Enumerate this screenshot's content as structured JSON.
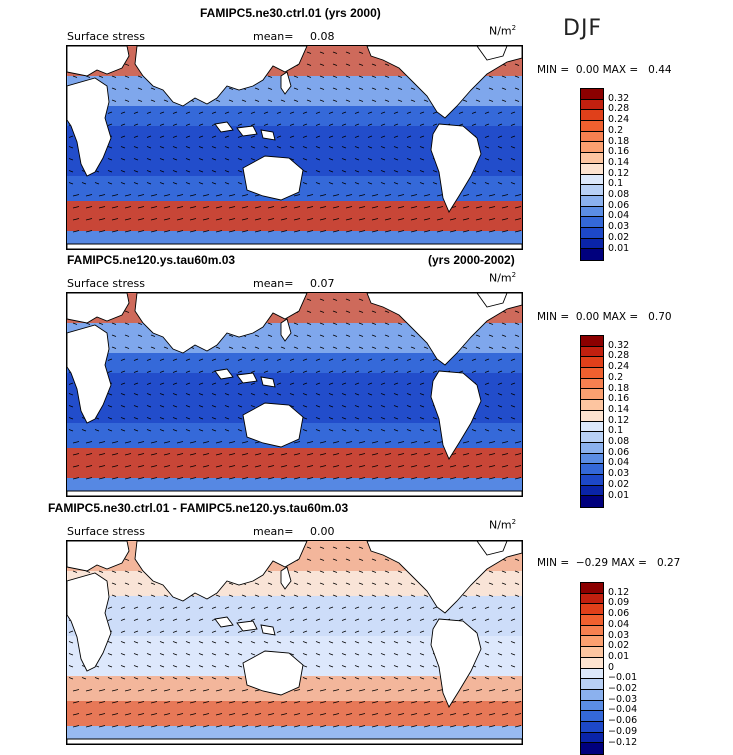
{
  "season": "DJF",
  "panels": [
    {
      "title": "FAMIPC5.ne30.ctrl.01 (yrs 2000)",
      "title_right": "",
      "field_label": "Surface stress",
      "mean_label": "mean=",
      "mean_value": "0.08",
      "units": "N/m",
      "units_sup": "2",
      "min_label": "MIN =",
      "min_value": "0.00",
      "max_label": "MAX =",
      "max_value": "0.44",
      "colorbar_levels": [
        "0.32",
        "0.28",
        "0.24",
        "0.2",
        "0.18",
        "0.16",
        "0.14",
        "0.12",
        "0.1",
        "0.08",
        "0.06",
        "0.04",
        "0.03",
        "0.02",
        "0.01"
      ],
      "colorbar_colors": [
        "#8b0000",
        "#c1200f",
        "#e0401a",
        "#f0602f",
        "#f68050",
        "#fba070",
        "#fdc5a0",
        "#fde3d0",
        "#dce8fb",
        "#b8d0f5",
        "#8bb1ee",
        "#5b8de4",
        "#3468d8",
        "#1d48c8",
        "#0a24a8",
        "#00007d"
      ]
    },
    {
      "title": "FAMIPC5.ne120.ys.tau60m.03",
      "title_right": "(yrs 2000-2002)",
      "field_label": "Surface stress",
      "mean_label": "mean=",
      "mean_value": "0.07",
      "units": "N/m",
      "units_sup": "2",
      "min_label": "MIN =",
      "min_value": "0.00",
      "max_label": "MAX =",
      "max_value": "0.70",
      "colorbar_levels": [
        "0.32",
        "0.28",
        "0.24",
        "0.2",
        "0.18",
        "0.16",
        "0.14",
        "0.12",
        "0.1",
        "0.08",
        "0.06",
        "0.04",
        "0.03",
        "0.02",
        "0.01"
      ],
      "colorbar_colors": [
        "#8b0000",
        "#c1200f",
        "#e0401a",
        "#f0602f",
        "#f68050",
        "#fba070",
        "#fdc5a0",
        "#fde3d0",
        "#dce8fb",
        "#b8d0f5",
        "#8bb1ee",
        "#5b8de4",
        "#3468d8",
        "#1d48c8",
        "#0a24a8",
        "#00007d"
      ]
    },
    {
      "title": "FAMIPC5.ne30.ctrl.01 - FAMIPC5.ne120.ys.tau60m.03",
      "title_right": "",
      "field_label": "Surface stress",
      "mean_label": "mean=",
      "mean_value": "0.00",
      "units": "N/m",
      "units_sup": "2",
      "min_label": "MIN =",
      "min_value": "−0.29",
      "max_label": "MAX =",
      "max_value": "0.27",
      "colorbar_levels": [
        "0.12",
        "0.09",
        "0.06",
        "0.04",
        "0.03",
        "0.02",
        "0.01",
        "0",
        "−0.01",
        "−0.02",
        "−0.03",
        "−0.04",
        "−0.06",
        "−0.09",
        "−0.12"
      ],
      "colorbar_colors": [
        "#8b0000",
        "#c1200f",
        "#e0401a",
        "#f0602f",
        "#f68050",
        "#fba070",
        "#fdc5a0",
        "#fde3d0",
        "#dce8fb",
        "#b8d0f5",
        "#8bb1ee",
        "#5b8de4",
        "#3468d8",
        "#1d48c8",
        "#0a24a8",
        "#00007d"
      ]
    }
  ]
}
